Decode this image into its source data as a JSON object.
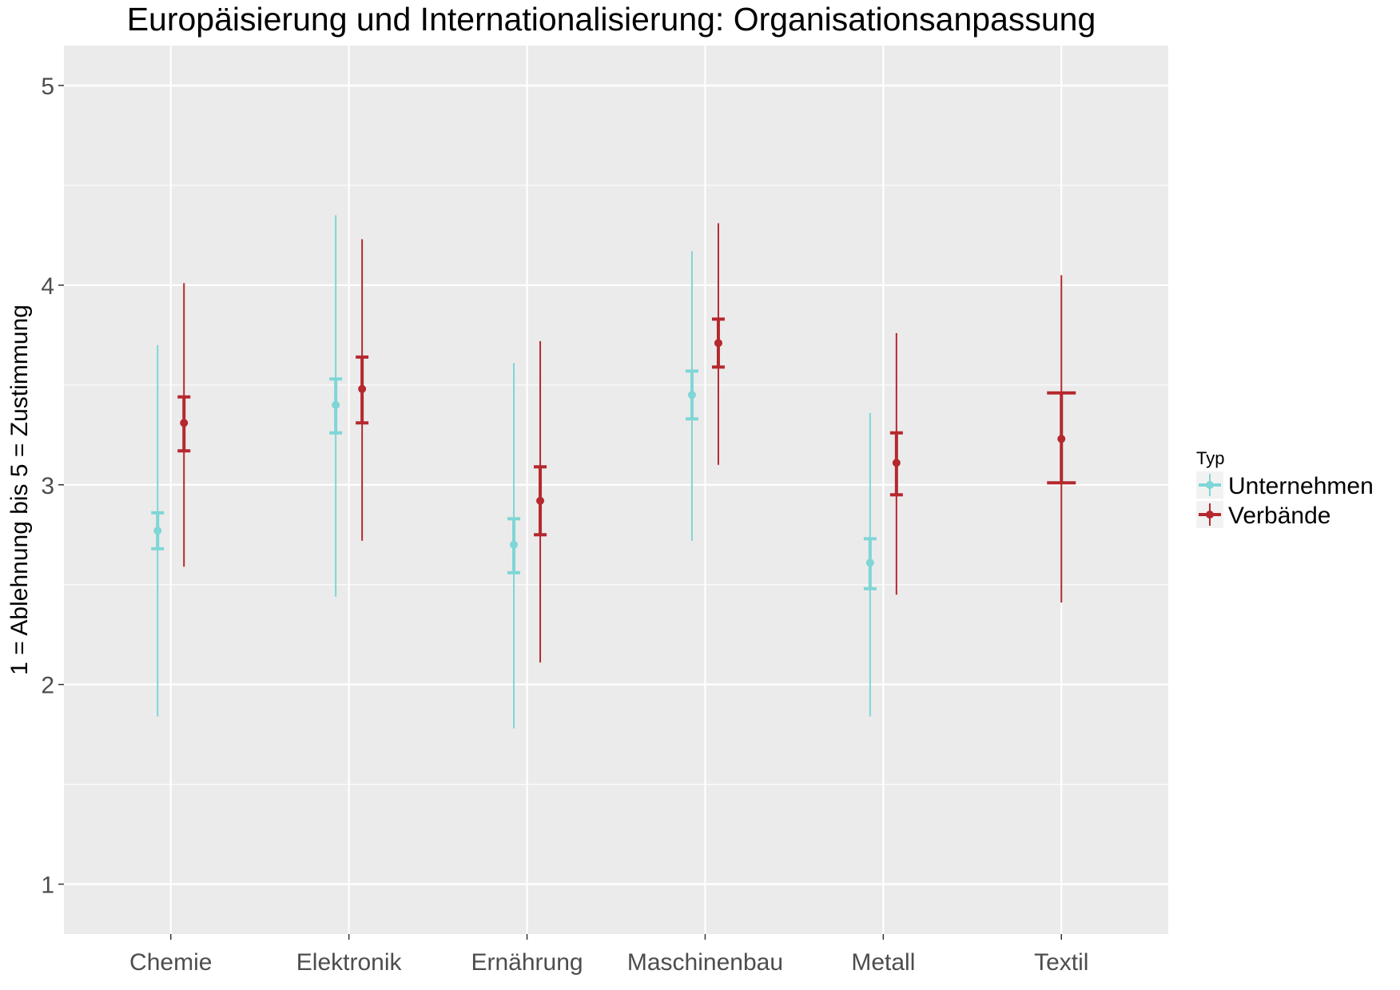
{
  "chart_data": {
    "type": "errorbar",
    "title": "Europäisierung und Internationalisierung: Organisationsanpassung",
    "xlabel": "",
    "ylabel": "1 = Ablehnung bis 5 = Zustimmung",
    "ylim": [
      0.75,
      5.2
    ],
    "y_ticks": [
      "1",
      "2",
      "3",
      "4",
      "5"
    ],
    "grid": true,
    "legend_title": "Typ",
    "legend_position": "right",
    "categories": [
      "Chemie",
      "Elektronik",
      "Ernährung",
      "Maschinenbau",
      "Metall",
      "Textil"
    ],
    "series": [
      {
        "name": "Unternehmen",
        "color": "#7fd6d6",
        "points": [
          {
            "category": "Chemie",
            "mean": 2.77,
            "ci_low": 2.68,
            "ci_high": 2.86,
            "range_low": 1.84,
            "range_high": 3.7
          },
          {
            "category": "Elektronik",
            "mean": 3.4,
            "ci_low": 3.26,
            "ci_high": 3.53,
            "range_low": 2.44,
            "range_high": 4.35
          },
          {
            "category": "Ernährung",
            "mean": 2.7,
            "ci_low": 2.56,
            "ci_high": 2.83,
            "range_low": 1.78,
            "range_high": 3.61
          },
          {
            "category": "Maschinenbau",
            "mean": 3.45,
            "ci_low": 3.33,
            "ci_high": 3.57,
            "range_low": 2.72,
            "range_high": 4.17
          },
          {
            "category": "Metall",
            "mean": 2.61,
            "ci_low": 2.48,
            "ci_high": 2.73,
            "range_low": 1.84,
            "range_high": 3.36
          }
        ]
      },
      {
        "name": "Verbände",
        "color": "#b5282e",
        "points": [
          {
            "category": "Chemie",
            "mean": 3.31,
            "ci_low": 3.17,
            "ci_high": 3.44,
            "range_low": 2.59,
            "range_high": 4.01
          },
          {
            "category": "Elektronik",
            "mean": 3.48,
            "ci_low": 3.31,
            "ci_high": 3.64,
            "range_low": 2.72,
            "range_high": 4.23
          },
          {
            "category": "Ernährung",
            "mean": 2.92,
            "ci_low": 2.75,
            "ci_high": 3.09,
            "range_low": 2.11,
            "range_high": 3.72
          },
          {
            "category": "Maschinenbau",
            "mean": 3.71,
            "ci_low": 3.59,
            "ci_high": 3.83,
            "range_low": 3.1,
            "range_high": 4.31
          },
          {
            "category": "Metall",
            "mean": 3.11,
            "ci_low": 2.95,
            "ci_high": 3.26,
            "range_low": 2.45,
            "range_high": 3.76
          },
          {
            "category": "Textil",
            "mean": 3.23,
            "ci_low": 3.01,
            "ci_high": 3.46,
            "range_low": 2.41,
            "range_high": 4.05
          }
        ]
      }
    ]
  }
}
